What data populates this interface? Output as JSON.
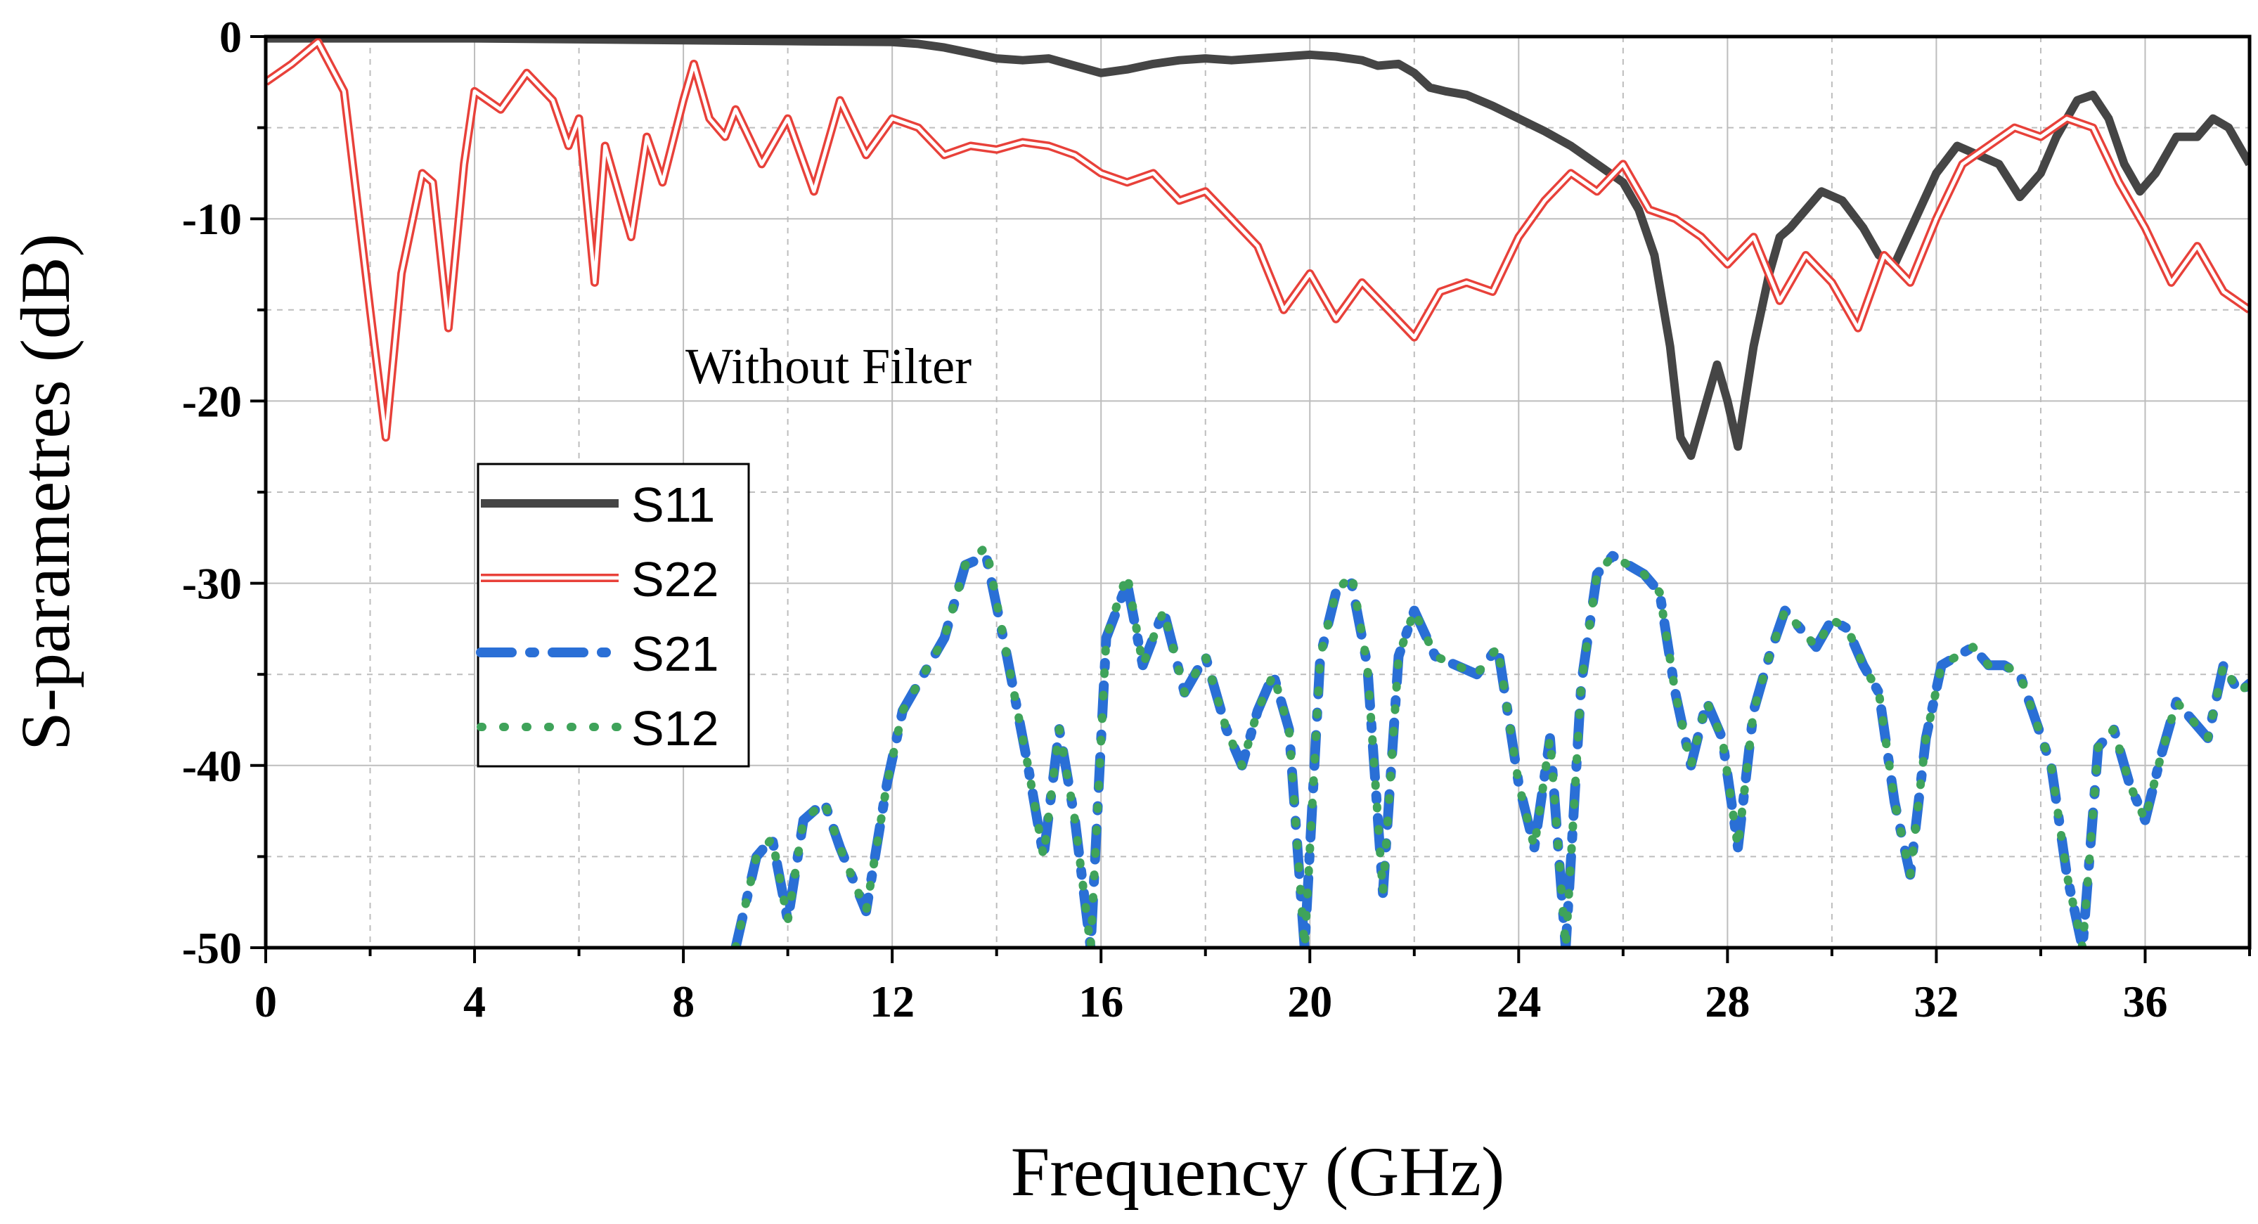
{
  "chart_data": {
    "type": "line",
    "title": "",
    "xlabel": "Frequency (GHz)",
    "ylabel": "S-parametres (dB)",
    "xlim": [
      0,
      38
    ],
    "ylim": [
      -50,
      0
    ],
    "xticks": [
      0,
      4,
      8,
      12,
      16,
      20,
      24,
      28,
      32,
      36
    ],
    "yticks": [
      0,
      -10,
      -20,
      -30,
      -40,
      -50
    ],
    "grid": true,
    "legend_position": "center-left",
    "annotation": "Without Filter",
    "series": [
      {
        "name": "S11",
        "color": "#454545",
        "style": "solid-thick",
        "x": [
          0,
          2,
          4,
          6,
          8,
          10,
          12,
          12.5,
          13,
          13.5,
          14,
          14.5,
          15,
          15.5,
          16,
          16.5,
          17,
          17.5,
          18,
          18.5,
          19,
          19.5,
          20,
          20.5,
          21,
          21.3,
          21.7,
          22,
          22.3,
          22.6,
          23,
          23.5,
          24,
          24.5,
          25,
          25.5,
          26,
          26.3,
          26.6,
          26.9,
          27.1,
          27.3,
          27.5,
          27.8,
          28,
          28.2,
          28.5,
          28.8,
          29,
          29.2,
          29.5,
          29.8,
          30.2,
          30.6,
          30.9,
          31.2,
          31.6,
          32,
          32.4,
          32.8,
          33.2,
          33.6,
          34,
          34.3,
          34.7,
          35,
          35.3,
          35.6,
          35.9,
          36.2,
          36.6,
          37,
          37.3,
          37.6,
          38
        ],
        "values": [
          -0.1,
          -0.1,
          -0.1,
          -0.15,
          -0.2,
          -0.25,
          -0.3,
          -0.4,
          -0.6,
          -0.9,
          -1.2,
          -1.3,
          -1.2,
          -1.6,
          -2.0,
          -1.8,
          -1.5,
          -1.3,
          -1.2,
          -1.3,
          -1.2,
          -1.1,
          -1.0,
          -1.1,
          -1.3,
          -1.6,
          -1.5,
          -2.0,
          -2.8,
          -3.0,
          -3.2,
          -3.8,
          -4.5,
          -5.2,
          -6.0,
          -7.0,
          -8.0,
          -9.5,
          -12.0,
          -17.0,
          -22.0,
          -23.0,
          -21.0,
          -18.0,
          -20.0,
          -22.5,
          -17.0,
          -13.0,
          -11.0,
          -10.5,
          -9.5,
          -8.5,
          -9.0,
          -10.5,
          -12.0,
          -12.5,
          -10.0,
          -7.5,
          -6.0,
          -6.5,
          -7.0,
          -8.8,
          -7.5,
          -5.5,
          -3.5,
          -3.2,
          -4.5,
          -7.0,
          -8.5,
          -7.5,
          -5.5,
          -5.5,
          -4.5,
          -5.0,
          -7.0
        ]
      },
      {
        "name": "S22",
        "color": "#e8413a",
        "style": "double-line",
        "x": [
          0,
          0.5,
          1,
          1.5,
          2,
          2.3,
          2.6,
          3,
          3.2,
          3.5,
          3.8,
          4,
          4.5,
          5,
          5.5,
          5.8,
          6,
          6.3,
          6.5,
          6.8,
          7,
          7.3,
          7.6,
          8,
          8.2,
          8.5,
          8.8,
          9,
          9.5,
          10,
          10.5,
          11,
          11.5,
          12,
          12.5,
          13,
          13.5,
          14,
          14.5,
          15,
          15.5,
          16,
          16.5,
          17,
          17.5,
          18,
          18.5,
          19,
          19.5,
          20,
          20.5,
          21,
          21.5,
          22,
          22.5,
          23,
          23.5,
          24,
          24.5,
          25,
          25.5,
          26,
          26.5,
          27,
          27.5,
          28,
          28.5,
          29,
          29.5,
          30,
          30.5,
          31,
          31.5,
          32,
          32.5,
          33,
          33.5,
          34,
          34.5,
          35,
          35.5,
          36,
          36.5,
          37,
          37.5,
          38
        ],
        "values": [
          -2.5,
          -1.5,
          -0.3,
          -3.0,
          -15.0,
          -22.0,
          -13.0,
          -7.5,
          -8.0,
          -16.0,
          -7.0,
          -3.0,
          -4.0,
          -2.0,
          -3.5,
          -6.0,
          -4.5,
          -13.5,
          -6.0,
          -9.0,
          -11.0,
          -5.5,
          -8.0,
          -3.5,
          -1.5,
          -4.5,
          -5.5,
          -4.0,
          -7.0,
          -4.5,
          -8.5,
          -3.5,
          -6.5,
          -4.5,
          -5.0,
          -6.5,
          -6.0,
          -6.2,
          -5.8,
          -6.0,
          -6.5,
          -7.5,
          -8.0,
          -7.5,
          -9.0,
          -8.5,
          -10.0,
          -11.5,
          -15.0,
          -13.0,
          -15.5,
          -13.5,
          -15.0,
          -16.5,
          -14.0,
          -13.5,
          -14.0,
          -11.0,
          -9.0,
          -7.5,
          -8.5,
          -7.0,
          -9.5,
          -10.0,
          -11.0,
          -12.5,
          -11.0,
          -14.5,
          -12.0,
          -13.5,
          -16.0,
          -12.0,
          -13.5,
          -10.0,
          -7.0,
          -6.0,
          -5.0,
          -5.5,
          -4.5,
          -5.0,
          -8.0,
          -10.5,
          -13.5,
          -11.5,
          -14.0,
          -15.0
        ]
      },
      {
        "name": "S21",
        "color": "#2a6fd6",
        "style": "dash-dot",
        "x": [
          9,
          9.4,
          9.7,
          10,
          10.3,
          10.7,
          11,
          11.5,
          11.9,
          12.2,
          12.6,
          13,
          13.4,
          13.8,
          14.2,
          14.6,
          14.9,
          15.2,
          15.5,
          15.8,
          16.1,
          16.5,
          16.8,
          17.2,
          17.6,
          18,
          18.4,
          18.7,
          19,
          19.3,
          19.6,
          19.9,
          20.2,
          20.5,
          20.8,
          21.1,
          21.4,
          21.7,
          22,
          22.4,
          22.8,
          23.2,
          23.6,
          24,
          24.3,
          24.6,
          24.9,
          25.2,
          25.5,
          25.8,
          26.1,
          26.4,
          26.7,
          27,
          27.3,
          27.6,
          27.9,
          28.2,
          28.5,
          28.8,
          29.1,
          29.4,
          29.7,
          30,
          30.3,
          30.6,
          30.9,
          31.2,
          31.5,
          31.8,
          32.1,
          32.4,
          32.7,
          33,
          33.3,
          33.6,
          33.9,
          34.2,
          34.5,
          34.8,
          35.1,
          35.4,
          35.7,
          36,
          36.3,
          36.6,
          36.9,
          37.2,
          37.5,
          37.8,
          38
        ],
        "values": [
          -50.0,
          -45.0,
          -44.0,
          -48.5,
          -43.0,
          -42.0,
          -44.5,
          -48.0,
          -41.0,
          -37.0,
          -35.0,
          -33.0,
          -29.0,
          -28.5,
          -34.0,
          -40.0,
          -45.0,
          -38.0,
          -43.0,
          -50.0,
          -33.0,
          -30.0,
          -34.5,
          -31.5,
          -36.0,
          -34.0,
          -38.0,
          -40.0,
          -37.0,
          -35.0,
          -38.0,
          -50.0,
          -34.0,
          -30.5,
          -30.0,
          -34.5,
          -47.0,
          -34.0,
          -31.5,
          -34.0,
          -34.5,
          -35.0,
          -33.5,
          -41.0,
          -44.5,
          -38.5,
          -50.0,
          -35.5,
          -29.5,
          -28.5,
          -29.0,
          -29.5,
          -30.5,
          -36.0,
          -40.0,
          -36.5,
          -38.5,
          -44.5,
          -37.0,
          -34.0,
          -31.5,
          -32.5,
          -33.5,
          -32.0,
          -32.5,
          -34.5,
          -36.0,
          -42.0,
          -46.0,
          -38.5,
          -34.5,
          -34.0,
          -33.5,
          -34.5,
          -34.5,
          -35.0,
          -37.5,
          -40.0,
          -46.0,
          -50.0,
          -39.0,
          -38.0,
          -41.0,
          -43.0,
          -39.5,
          -36.5,
          -37.5,
          -38.5,
          -34.5,
          -36.0,
          -35.5
        ]
      },
      {
        "name": "S12",
        "color": "#3fa35a",
        "style": "dotted",
        "x": [
          9,
          9.4,
          9.7,
          10,
          10.3,
          10.7,
          11,
          11.5,
          11.9,
          12.2,
          12.6,
          13,
          13.4,
          13.8,
          14.2,
          14.6,
          14.9,
          15.2,
          15.5,
          15.8,
          16.1,
          16.5,
          16.8,
          17.2,
          17.6,
          18,
          18.4,
          18.7,
          19,
          19.3,
          19.6,
          19.9,
          20.2,
          20.5,
          20.8,
          21.1,
          21.4,
          21.7,
          22,
          22.4,
          22.8,
          23.2,
          23.6,
          24,
          24.3,
          24.6,
          24.9,
          25.2,
          25.5,
          25.8,
          26.1,
          26.4,
          26.7,
          27,
          27.3,
          27.6,
          27.9,
          28.2,
          28.5,
          28.8,
          29.1,
          29.4,
          29.7,
          30,
          30.3,
          30.6,
          30.9,
          31.2,
          31.5,
          31.8,
          32.1,
          32.4,
          32.7,
          33,
          33.3,
          33.6,
          33.9,
          34.2,
          34.5,
          34.8,
          35.1,
          35.4,
          35.7,
          36,
          36.3,
          36.6,
          36.9,
          37.2,
          37.5,
          37.8,
          38
        ],
        "values": [
          -50.0,
          -45.0,
          -44.0,
          -48.5,
          -43.0,
          -42.0,
          -44.5,
          -48.0,
          -41.0,
          -37.0,
          -35.0,
          -33.0,
          -29.0,
          -28.0,
          -34.0,
          -40.0,
          -45.0,
          -38.0,
          -43.0,
          -50.0,
          -33.0,
          -29.5,
          -34.5,
          -31.5,
          -36.0,
          -34.0,
          -38.0,
          -40.0,
          -37.0,
          -35.0,
          -38.0,
          -50.0,
          -34.0,
          -30.5,
          -29.5,
          -34.5,
          -47.0,
          -34.0,
          -31.5,
          -34.0,
          -34.5,
          -35.0,
          -33.5,
          -41.0,
          -44.5,
          -38.5,
          -50.0,
          -35.5,
          -29.5,
          -28.5,
          -29.0,
          -29.5,
          -30.5,
          -36.0,
          -40.0,
          -36.5,
          -38.5,
          -44.5,
          -37.0,
          -34.0,
          -31.5,
          -32.5,
          -33.5,
          -32.0,
          -32.5,
          -34.5,
          -36.0,
          -42.0,
          -46.0,
          -38.5,
          -34.5,
          -34.0,
          -33.5,
          -34.5,
          -34.5,
          -35.0,
          -37.5,
          -40.0,
          -46.0,
          -50.0,
          -39.0,
          -38.0,
          -41.0,
          -43.0,
          -39.5,
          -36.5,
          -37.5,
          -38.5,
          -34.5,
          -36.0,
          -35.5
        ]
      }
    ]
  }
}
